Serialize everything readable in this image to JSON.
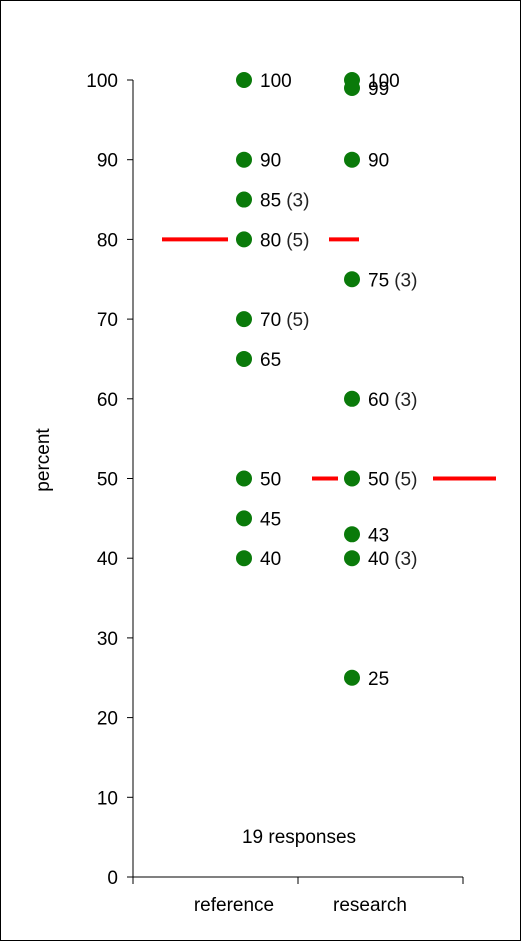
{
  "chart_data": {
    "type": "scatter",
    "ylabel": "percent",
    "ylim": [
      0,
      100
    ],
    "ytick_labels": [
      "0",
      "10",
      "20",
      "30",
      "40",
      "50",
      "60",
      "70",
      "80",
      "90",
      "100"
    ],
    "categories": [
      "reference",
      "research"
    ],
    "annotation": "19 responses",
    "marker_color": "#0a7a0a",
    "median_color": "#ff0000",
    "series": [
      {
        "category": "reference",
        "points": [
          {
            "y": 100,
            "label": "100",
            "count": ""
          },
          {
            "y": 90,
            "label": "90",
            "count": ""
          },
          {
            "y": 85,
            "label": "85",
            "count": "(3)"
          },
          {
            "y": 80,
            "label": "80",
            "count": "(5)"
          },
          {
            "y": 70,
            "label": "70",
            "count": "(5)"
          },
          {
            "y": 65,
            "label": "65",
            "count": ""
          },
          {
            "y": 50,
            "label": "50",
            "count": ""
          },
          {
            "y": 45,
            "label": "45",
            "count": ""
          },
          {
            "y": 40,
            "label": "40",
            "count": ""
          }
        ],
        "median": 80
      },
      {
        "category": "research",
        "points": [
          {
            "y": 100,
            "label": "100",
            "count": ""
          },
          {
            "y": 99,
            "label": "99",
            "count": ""
          },
          {
            "y": 90,
            "label": "90",
            "count": ""
          },
          {
            "y": 75,
            "label": "75",
            "count": "(3)"
          },
          {
            "y": 60,
            "label": "60",
            "count": "(3)"
          },
          {
            "y": 50,
            "label": "50",
            "count": "(5)"
          },
          {
            "y": 43,
            "label": "43",
            "count": ""
          },
          {
            "y": 40,
            "label": "40",
            "count": "(3)"
          },
          {
            "y": 25,
            "label": "25",
            "count": ""
          }
        ],
        "median": 50
      }
    ]
  }
}
